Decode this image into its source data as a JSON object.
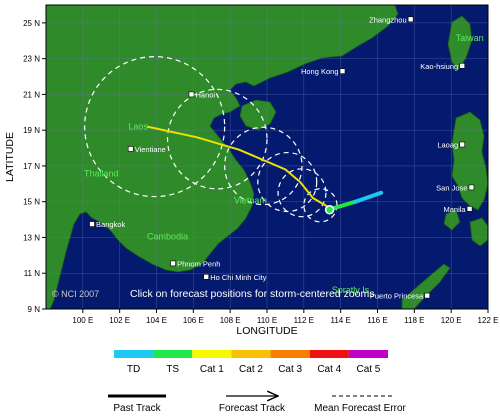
{
  "map": {
    "axes": {
      "x_label": "LONGITUDE",
      "y_label": "LATITUDE",
      "x_ticks": [
        "100 E",
        "102 E",
        "104 E",
        "106 E",
        "108 E",
        "110 E",
        "112 E",
        "114 E",
        "116 E",
        "118 E",
        "120 E",
        "122 E"
      ],
      "y_ticks": [
        "25 N",
        "23 N",
        "21 N",
        "19 N",
        "17 N",
        "15 N",
        "13 N",
        "11 N",
        "9 N"
      ],
      "lon_range": [
        98,
        122
      ],
      "lat_range": [
        9,
        26
      ]
    },
    "cities": [
      {
        "name": "Zhangzhou",
        "lon": 117.8,
        "lat": 25.2
      },
      {
        "name": "Hong Kong",
        "lon": 114.1,
        "lat": 22.3
      },
      {
        "name": "Kao-hsiung",
        "lon": 120.6,
        "lat": 22.6
      },
      {
        "name": "Hanoi",
        "lon": 105.9,
        "lat": 21.0
      },
      {
        "name": "Vientiane",
        "lon": 102.6,
        "lat": 17.95
      },
      {
        "name": "Laoag",
        "lon": 120.6,
        "lat": 18.2
      },
      {
        "name": "San Jose",
        "lon": 121.1,
        "lat": 15.8
      },
      {
        "name": "Manila",
        "lon": 121.0,
        "lat": 14.6
      },
      {
        "name": "Bangkok",
        "lon": 100.5,
        "lat": 13.75
      },
      {
        "name": "Phnom Penh",
        "lon": 104.9,
        "lat": 11.55
      },
      {
        "name": "Ho Chi Minh City",
        "lon": 106.7,
        "lat": 10.8
      },
      {
        "name": "Puerto Princesa",
        "lon": 118.7,
        "lat": 9.75
      }
    ],
    "regions": [
      {
        "name": "Taiwan",
        "lon": 121.0,
        "lat": 24.0
      },
      {
        "name": "Laos",
        "lon": 103.0,
        "lat": 19.05
      },
      {
        "name": "Thailand",
        "lon": 101.0,
        "lat": 16.4
      },
      {
        "name": "Vietnam",
        "lon": 109.1,
        "lat": 14.9
      },
      {
        "name": "Cambodia",
        "lon": 104.6,
        "lat": 12.9
      },
      {
        "name": "Spratly Is.",
        "lon": 114.6,
        "lat": 9.9
      }
    ],
    "copyright": "© NCI 2007",
    "hint": "Click on forecast positions for storm-centered zooms",
    "past_track": [
      {
        "lon": 113.5,
        "lat": 14.6,
        "category": "TS"
      },
      {
        "lon": 114.8,
        "lat": 15.0,
        "category": "TS"
      },
      {
        "lon": 116.2,
        "lat": 15.5,
        "category": "TD"
      }
    ],
    "forecast_track": [
      {
        "lon": 113.5,
        "lat": 14.6
      },
      {
        "lon": 112.5,
        "lat": 15.2
      },
      {
        "lon": 111.8,
        "lat": 16.1
      },
      {
        "lon": 111.0,
        "lat": 16.8
      },
      {
        "lon": 108.5,
        "lat": 17.9
      },
      {
        "lon": 106.2,
        "lat": 18.6
      },
      {
        "lon": 103.5,
        "lat": 19.2
      }
    ],
    "current_position": {
      "lon": 113.4,
      "lat": 14.55
    },
    "error_circles": [
      {
        "lon": 112.9,
        "lat": 14.8,
        "radius_deg": 0.9
      },
      {
        "lon": 111.9,
        "lat": 15.5,
        "radius_deg": 1.3
      },
      {
        "lon": 111.1,
        "lat": 16.1,
        "radius_deg": 1.6
      },
      {
        "lon": 109.8,
        "lat": 17.0,
        "radius_deg": 2.1
      },
      {
        "lon": 107.3,
        "lat": 18.5,
        "radius_deg": 2.7
      },
      {
        "lon": 103.9,
        "lat": 19.2,
        "radius_deg": 3.8
      }
    ]
  },
  "legend": {
    "categories": [
      {
        "label": "TD",
        "color": "#1ec8f0"
      },
      {
        "label": "TS",
        "color": "#20e848"
      },
      {
        "label": "Cat 1",
        "color": "#f8f800"
      },
      {
        "label": "Cat 2",
        "color": "#f8c000"
      },
      {
        "label": "Cat 3",
        "color": "#f88000"
      },
      {
        "label": "Cat 4",
        "color": "#f01010"
      },
      {
        "label": "Cat 5",
        "color": "#c000c8"
      }
    ],
    "past_track_label": "Past Track",
    "forecast_track_label": "Forecast Track",
    "error_label": "Mean Forecast Error"
  },
  "colors": {
    "ocean": "#041a6e",
    "land": "#2f8a2a",
    "land_border": "#1a5a18",
    "grid": "#6a78b0",
    "forecast_track": "#f0e000",
    "city_text": "#ffffff",
    "region_text": "#60e860"
  }
}
